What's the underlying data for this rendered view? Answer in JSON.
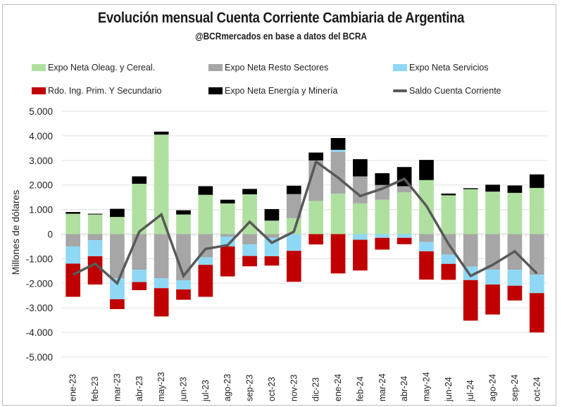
{
  "chart_data": {
    "type": "bar",
    "stacked": true,
    "title": "Evolución mensual Cuenta Corriente Cambiaria de Argentina",
    "subtitle": "@BCRmercados en base a datos del BCRA",
    "xlabel": "",
    "ylabel": "Millones de dólares",
    "ylim": [
      -5000,
      5000
    ],
    "yticks": [
      5000,
      4000,
      3000,
      2000,
      1000,
      0,
      -1000,
      -2000,
      -3000,
      -4000,
      -5000
    ],
    "ytick_labels": [
      "5.000",
      "4.000",
      "3.000",
      "2.000",
      "1.000",
      "0",
      "-1.000",
      "-2.000",
      "-3.000",
      "-4.000",
      "-5.000"
    ],
    "grid": true,
    "legend_position": "top",
    "categories": [
      "ene-23",
      "feb-23",
      "mar-23",
      "abr-23",
      "may-23",
      "jun-23",
      "jul-23",
      "ago-23",
      "sep-23",
      "oct-23",
      "nov-23",
      "dic-23",
      "ene-24",
      "feb-24",
      "mar-24",
      "abr-24",
      "may-24",
      "jun-24",
      "jul-24",
      "ago-24",
      "sep-24",
      "oct-24"
    ],
    "series": [
      {
        "name": "Expo Neta Oleag. y Cereal.",
        "kind": "bar",
        "color": "#b0e0a0",
        "values": [
          830,
          800,
          700,
          2050,
          4050,
          800,
          1600,
          1250,
          1620,
          550,
          650,
          1350,
          1650,
          1250,
          1400,
          1700,
          2200,
          1580,
          1830,
          1730,
          1680,
          1880
        ]
      },
      {
        "name": "Expo Neta Resto Sectores",
        "kind": "bar",
        "color": "#a6a6a6",
        "values": [
          -500,
          -250,
          -1800,
          -1450,
          -1800,
          -1880,
          -950,
          -100,
          -420,
          -150,
          980,
          1650,
          1700,
          1100,
          600,
          250,
          -320,
          -830,
          -1320,
          -1450,
          -1450,
          -1650
        ]
      },
      {
        "name": "Expo Neta Servicios",
        "kind": "bar",
        "color": "#8fd8f5",
        "values": [
          -700,
          -650,
          -850,
          -500,
          -400,
          -370,
          -300,
          -400,
          -470,
          -750,
          -680,
          0,
          80,
          -230,
          -150,
          -150,
          -380,
          -380,
          -550,
          -600,
          -650,
          -750
        ]
      },
      {
        "name": "Rdo. Ing. Prim. Y Secundario",
        "kind": "bar",
        "color": "#c00000",
        "values": [
          -1350,
          -1150,
          -400,
          -330,
          -1150,
          -420,
          -1300,
          -1220,
          -420,
          -380,
          -1260,
          -420,
          -1600,
          -1250,
          -480,
          -260,
          -1150,
          -650,
          -1650,
          -1220,
          -600,
          -1600
        ]
      },
      {
        "name": "Expo Neta Energía y Minería",
        "kind": "bar",
        "color": "#000000",
        "values": [
          70,
          30,
          330,
          300,
          120,
          170,
          350,
          150,
          220,
          470,
          340,
          320,
          480,
          700,
          480,
          780,
          820,
          70,
          40,
          280,
          300,
          550
        ]
      },
      {
        "name": "Saldo Cuenta Corriente",
        "kind": "line",
        "color": "#595959",
        "values": [
          -1650,
          -1200,
          -2000,
          100,
          800,
          -1700,
          -600,
          -450,
          500,
          -350,
          100,
          2950,
          2300,
          1550,
          1850,
          2250,
          1150,
          -400,
          -1700,
          -1250,
          -700,
          -1600
        ]
      }
    ]
  },
  "legend": [
    {
      "label": "Expo Neta Oleag. y Cereal.",
      "color": "#b0e0a0",
      "kind": "bar"
    },
    {
      "label": "Expo Neta Resto Sectores",
      "color": "#a6a6a6",
      "kind": "bar"
    },
    {
      "label": "Expo Neta Servicios",
      "color": "#8fd8f5",
      "kind": "bar"
    },
    {
      "label": "Rdo. Ing. Prim. Y Secundario",
      "color": "#c00000",
      "kind": "bar"
    },
    {
      "label": "Expo Neta Energía y Minería",
      "color": "#000000",
      "kind": "bar"
    },
    {
      "label": "Saldo Cuenta Corriente",
      "color": "#595959",
      "kind": "line"
    }
  ]
}
